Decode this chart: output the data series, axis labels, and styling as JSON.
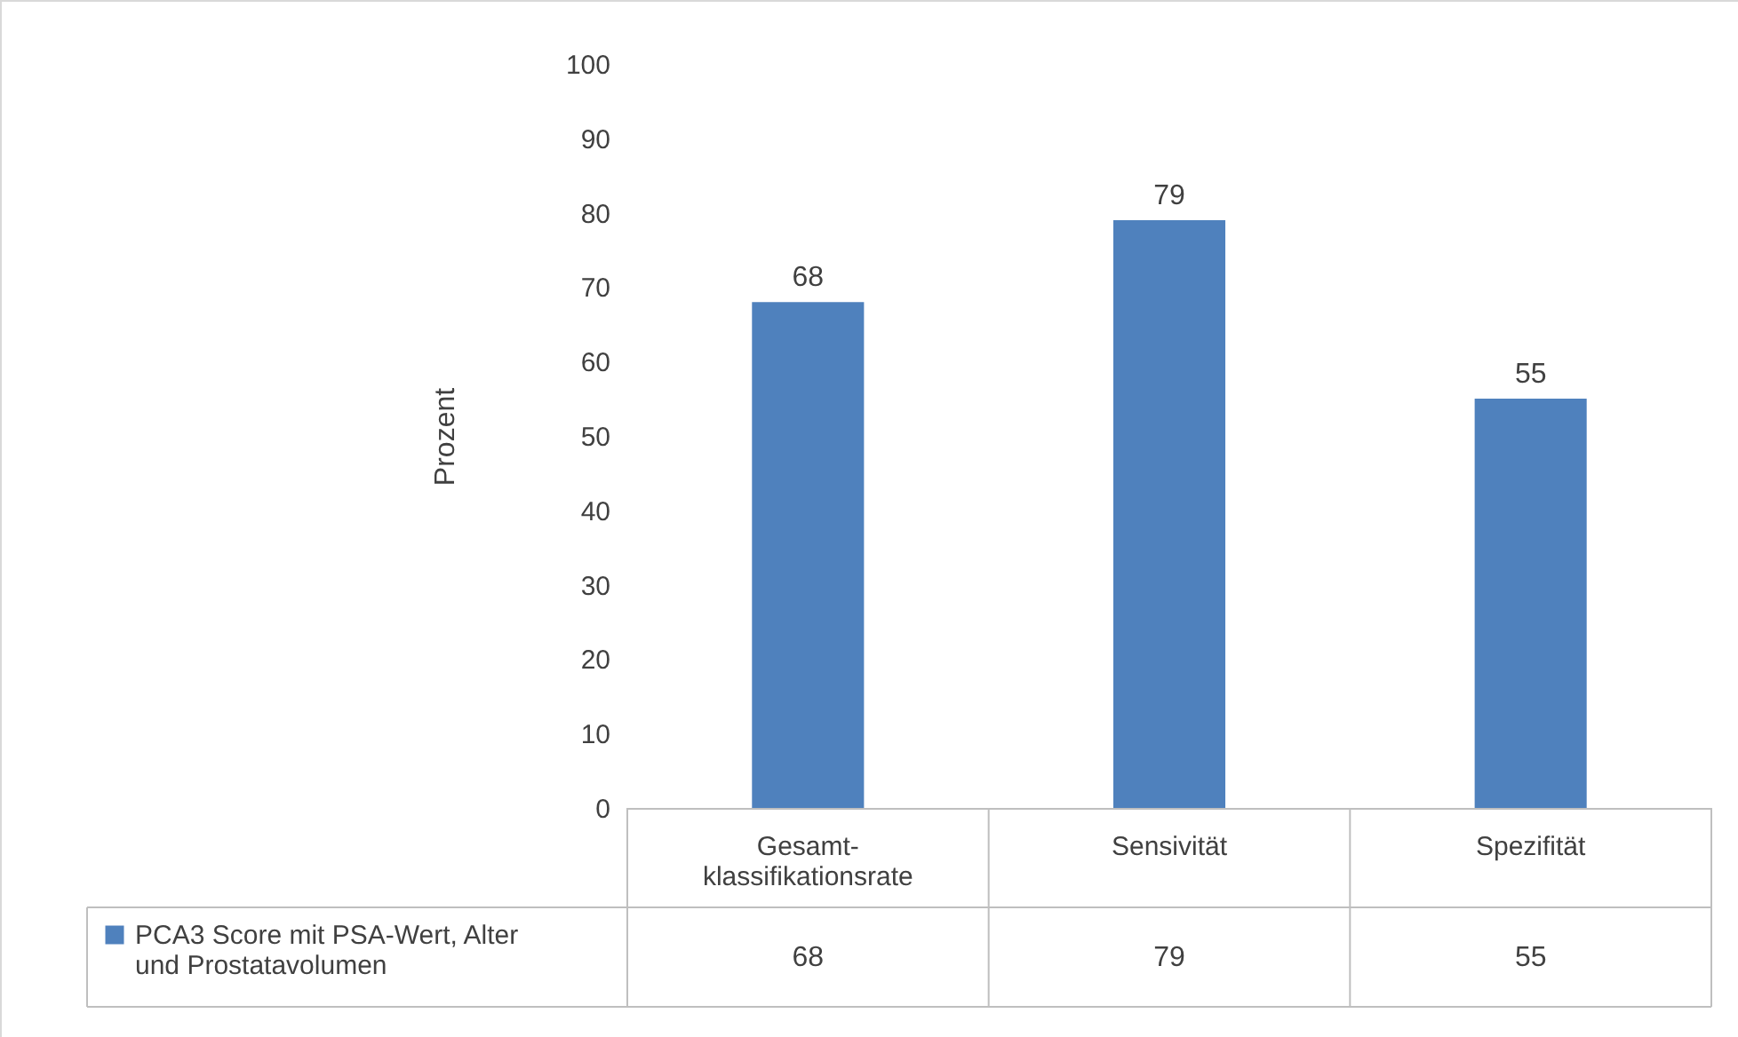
{
  "chart_data": {
    "type": "bar",
    "ylabel": "Prozent",
    "categories": [
      "Gesamt-klassifikationsrate",
      "Sensivität",
      "Spezifität"
    ],
    "series": [
      {
        "name": "PCA3 Score mit PSA-Wert, Alter und Prostatavolumen",
        "color": "#4f81bd",
        "values": [
          68,
          79,
          55
        ]
      }
    ],
    "ylim": [
      0,
      100
    ],
    "yticks": [
      0,
      10,
      20,
      30,
      40,
      50,
      60,
      70,
      80,
      90,
      100
    ],
    "data_labels": true,
    "annotations": [
      "68",
      "79",
      "55"
    ],
    "legend": "bottom"
  }
}
